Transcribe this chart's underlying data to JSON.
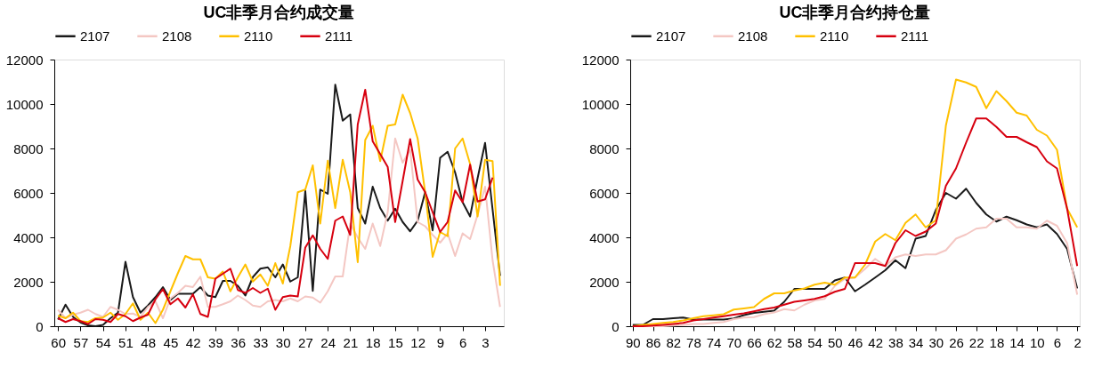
{
  "chart_data": [
    {
      "type": "line",
      "title": "UC非季月合约成交量",
      "legend": "top",
      "grid": false,
      "xlim": [
        60.5,
        0.5
      ],
      "xticks": [
        60,
        57,
        54,
        51,
        48,
        45,
        42,
        39,
        36,
        33,
        30,
        27,
        24,
        21,
        18,
        15,
        12,
        9,
        6,
        3
      ],
      "ylim": [
        0,
        12000
      ],
      "yticks": [
        0,
        2000,
        4000,
        6000,
        8000,
        10000,
        12000
      ],
      "x": [
        60,
        59,
        58,
        57,
        56,
        55,
        54,
        53,
        52,
        51,
        50,
        49,
        48,
        47,
        46,
        45,
        44,
        43,
        42,
        41,
        40,
        39,
        38,
        37,
        36,
        35,
        34,
        33,
        32,
        31,
        30,
        29,
        28,
        27,
        26,
        25,
        24,
        23,
        22,
        21,
        20,
        19,
        18,
        17,
        16,
        15,
        14,
        13,
        12,
        11,
        10,
        9,
        8,
        7,
        6,
        5,
        4,
        3,
        2,
        1
      ],
      "series": [
        {
          "name": "2107",
          "color": "#1a1a1a",
          "values": [
            300,
            970,
            420,
            170,
            40,
            0,
            60,
            360,
            610,
            2900,
            1310,
            610,
            930,
            1310,
            1760,
            1180,
            1460,
            1460,
            1460,
            1760,
            1380,
            1310,
            2040,
            2040,
            1820,
            1380,
            2210,
            2590,
            2650,
            2200,
            2780,
            2010,
            2200,
            6090,
            1590,
            6150,
            5960,
            10870,
            9250,
            9530,
            5320,
            4620,
            6280,
            5320,
            4750,
            5290,
            4690,
            4270,
            4750,
            6030,
            4310,
            7580,
            7850,
            6920,
            5580,
            4940,
            6660,
            8250,
            5260,
            2270
          ]
        },
        {
          "name": "2108",
          "color": "#f4c7c3",
          "values": [
            740,
            360,
            520,
            610,
            740,
            550,
            420,
            870,
            740,
            550,
            570,
            420,
            870,
            1120,
            360,
            1250,
            1500,
            1820,
            1760,
            2230,
            870,
            870,
            990,
            1120,
            1380,
            1180,
            930,
            870,
            1120,
            1180,
            1120,
            1250,
            1120,
            1340,
            1290,
            1060,
            1570,
            2240,
            2240,
            4620,
            3990,
            3480,
            4620,
            3610,
            5130,
            8450,
            7360,
            7940,
            4690,
            4500,
            4110,
            3760,
            4180,
            3160,
            4180,
            3920,
            5010,
            6280,
            2970,
            870
          ]
        },
        {
          "name": "2110",
          "color": "#ffc000",
          "values": [
            480,
            360,
            610,
            230,
            190,
            360,
            390,
            610,
            290,
            550,
            1030,
            290,
            610,
            140,
            740,
            1570,
            2390,
            3160,
            3010,
            3010,
            2200,
            2140,
            2460,
            1570,
            2200,
            2780,
            2010,
            2330,
            1820,
            2840,
            1920,
            3600,
            6030,
            6150,
            7240,
            4620,
            7450,
            5320,
            7490,
            6030,
            2880,
            8380,
            9020,
            7430,
            9020,
            9080,
            10420,
            9590,
            8450,
            6030,
            3120,
            4240,
            4050,
            8000,
            8450,
            7300,
            4940,
            7490,
            7430,
            1820
          ]
        },
        {
          "name": "2111",
          "color": "#d7000f",
          "values": [
            360,
            190,
            320,
            230,
            100,
            320,
            290,
            190,
            550,
            450,
            230,
            390,
            520,
            1210,
            1670,
            990,
            1250,
            840,
            1440,
            550,
            420,
            2140,
            2360,
            2590,
            1630,
            1500,
            1720,
            1500,
            1690,
            740,
            1310,
            1380,
            1340,
            3540,
            4090,
            3480,
            3030,
            4750,
            4940,
            4110,
            9080,
            10640,
            8320,
            7750,
            7170,
            4690,
            6540,
            8420,
            6600,
            6030,
            5130,
            4240,
            4690,
            6110,
            5580,
            7270,
            5610,
            5710,
            6690,
            null
          ]
        }
      ]
    },
    {
      "type": "line",
      "title": "UC非季月合约持仓量",
      "legend": "top",
      "grid": false,
      "xlim": [
        90.5,
        1.5
      ],
      "xticks": [
        90,
        86,
        82,
        78,
        74,
        70,
        66,
        62,
        58,
        54,
        50,
        46,
        42,
        38,
        34,
        30,
        26,
        22,
        18,
        14,
        10,
        6,
        2
      ],
      "ylim": [
        0,
        12000
      ],
      "yticks": [
        0,
        2000,
        4000,
        6000,
        8000,
        10000,
        12000
      ],
      "x": [
        90,
        88,
        86,
        84,
        82,
        80,
        78,
        76,
        74,
        72,
        70,
        68,
        66,
        64,
        62,
        60,
        58,
        56,
        54,
        52,
        50,
        48,
        46,
        44,
        42,
        40,
        38,
        36,
        34,
        32,
        30,
        28,
        26,
        24,
        22,
        20,
        18,
        16,
        14,
        12,
        10,
        8,
        6,
        4,
        2
      ],
      "series": [
        {
          "name": "2107",
          "color": "#1a1a1a",
          "values": [
            60,
            60,
            320,
            320,
            360,
            390,
            300,
            300,
            300,
            300,
            350,
            500,
            600,
            650,
            700,
            1100,
            1680,
            1680,
            1680,
            1680,
            2060,
            2190,
            1570,
            1870,
            2190,
            2520,
            2970,
            2610,
            3940,
            4060,
            5230,
            6000,
            5740,
            6190,
            5550,
            5030,
            4710,
            4930,
            4770,
            4580,
            4450,
            4580,
            4150,
            3480,
            1700
          ]
        },
        {
          "name": "2108",
          "color": "#f4c7c3",
          "values": [
            0,
            0,
            0,
            0,
            30,
            60,
            100,
            100,
            150,
            190,
            320,
            390,
            410,
            540,
            620,
            770,
            710,
            970,
            1160,
            1230,
            1810,
            2130,
            2190,
            2580,
            3030,
            2710,
            3100,
            3230,
            3160,
            3230,
            3230,
            3420,
            3940,
            4130,
            4390,
            4450,
            4840,
            4840,
            4450,
            4450,
            4390,
            4750,
            4520,
            3740,
            1420
          ]
        },
        {
          "name": "2110",
          "color": "#ffc000",
          "values": [
            0,
            60,
            100,
            150,
            190,
            260,
            360,
            450,
            490,
            540,
            750,
            800,
            860,
            1230,
            1480,
            1480,
            1610,
            1700,
            1870,
            1960,
            1870,
            2190,
            2190,
            2770,
            3810,
            4150,
            3870,
            4650,
            5030,
            4450,
            4770,
            9030,
            11100,
            10970,
            10770,
            9810,
            10580,
            10130,
            9610,
            9480,
            8840,
            8580,
            7940,
            5290,
            4450
          ]
        },
        {
          "name": "2111",
          "color": "#d7000f",
          "values": [
            0,
            0,
            30,
            60,
            100,
            150,
            260,
            320,
            390,
            450,
            520,
            580,
            670,
            770,
            840,
            970,
            1100,
            1160,
            1230,
            1350,
            1550,
            1680,
            2840,
            2840,
            2840,
            2710,
            3740,
            4320,
            4060,
            4260,
            4620,
            6320,
            7100,
            8260,
            9350,
            9350,
            8970,
            8520,
            8520,
            8280,
            8060,
            7420,
            7100,
            5290,
            2710
          ]
        }
      ]
    }
  ]
}
